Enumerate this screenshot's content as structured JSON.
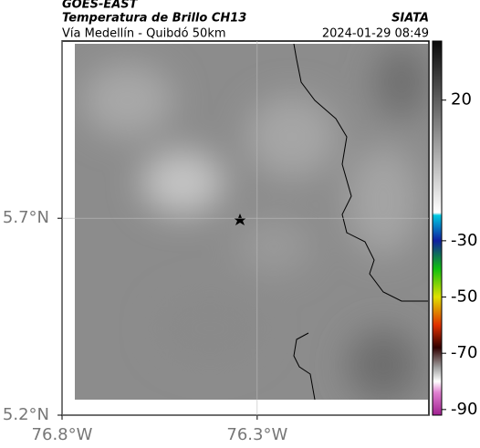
{
  "header": {
    "source": "GOES-EAST",
    "title": "Temperatura de Brillo CH13",
    "subtitle": "Vía Medellín - Quibdó 50km",
    "agency": "SIATA",
    "timestamp": "2024-01-29 08:49"
  },
  "map": {
    "xlim": [
      -76.8,
      -75.86
    ],
    "ylim": [
      5.2,
      6.15
    ],
    "xticks": [
      {
        "value": -76.8,
        "label": "76.8°W"
      },
      {
        "value": -76.3,
        "label": "76.3°W"
      }
    ],
    "yticks": [
      {
        "value": 5.2,
        "label": "5.2°N"
      },
      {
        "value": 5.7,
        "label": "5.7°N"
      }
    ],
    "grid": true
  },
  "colorbar": {
    "clim": [
      -92,
      41
    ],
    "ticks": [
      20,
      -30,
      -50,
      -70,
      -90
    ],
    "stops": [
      {
        "value": 41,
        "color": "#0a0a0a"
      },
      {
        "value": -20,
        "color": "#ffffff"
      },
      {
        "value": -21,
        "color": "#00c8e0"
      },
      {
        "value": -30,
        "color": "#1020a0"
      },
      {
        "value": -40,
        "color": "#10c010"
      },
      {
        "value": -50,
        "color": "#e0e000"
      },
      {
        "value": -60,
        "color": "#e03000"
      },
      {
        "value": -68,
        "color": "#300000"
      },
      {
        "value": -75,
        "color": "#a0a0a0"
      },
      {
        "value": -80,
        "color": "#ffffff"
      },
      {
        "value": -84,
        "color": "#e080d0"
      },
      {
        "value": -92,
        "color": "#a02090"
      }
    ]
  }
}
